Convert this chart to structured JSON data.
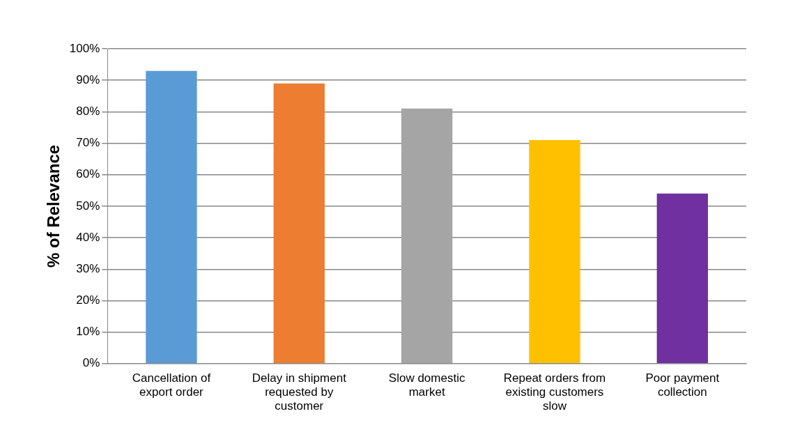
{
  "chart_data": {
    "type": "bar",
    "ylabel": "% of Relevance",
    "categories": [
      "Cancellation of export order",
      "Delay in shipment requested by customer",
      "Slow domestic market",
      "Repeat orders from existing customers slow",
      "Poor payment collection"
    ],
    "values": [
      93,
      89,
      81,
      71,
      54
    ],
    "colors": [
      "#5b9bd5",
      "#ed7d31",
      "#a5a5a5",
      "#ffc000",
      "#7030a0"
    ],
    "ylim": [
      0,
      100
    ],
    "yticks": [
      {
        "value": 0,
        "label": "0%"
      },
      {
        "value": 10,
        "label": "10%"
      },
      {
        "value": 20,
        "label": "20%"
      },
      {
        "value": 30,
        "label": "30%"
      },
      {
        "value": 40,
        "label": "40%"
      },
      {
        "value": 50,
        "label": "50%"
      },
      {
        "value": 60,
        "label": "60%"
      },
      {
        "value": 70,
        "label": "70%"
      },
      {
        "value": 80,
        "label": "80%"
      },
      {
        "value": 90,
        "label": "90%"
      },
      {
        "value": 100,
        "label": "100%"
      }
    ],
    "grid": true
  }
}
